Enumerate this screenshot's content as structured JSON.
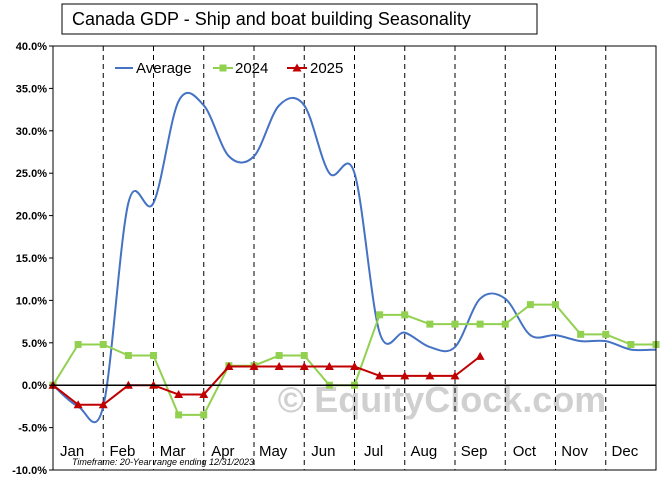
{
  "chart_data": {
    "type": "line",
    "title": "Canada  GDP - Ship and boat building Seasonality",
    "footnote": "Timeframe: 20-Year range ending 12/31/2023",
    "watermark": "© EquityClock.com",
    "x_tick_labels": [
      "Jan",
      "Feb",
      "Mar",
      "Apr",
      "May",
      "Jun",
      "Jul",
      "Aug",
      "Sep",
      "Oct",
      "Nov",
      "Dec"
    ],
    "y_tick_labels": [
      "40.0%",
      "35.0%",
      "30.0%",
      "25.0%",
      "20.0%",
      "15.0%",
      "10.0%",
      "5.0%",
      "0.0%",
      "-5.0%",
      "-10.0%"
    ],
    "ylim": [
      -10,
      40
    ],
    "xlim": [
      0,
      12
    ],
    "legend": [
      "Average",
      "2024",
      "2025"
    ],
    "series": [
      {
        "name": "Average",
        "color": "#4472C4",
        "marker": "none",
        "smooth": true,
        "x": [
          0,
          0.5,
          1.0,
          1.5,
          2.0,
          2.5,
          3.0,
          3.5,
          4.0,
          4.5,
          5.0,
          5.5,
          6.0,
          6.5,
          7.0,
          7.5,
          8.0,
          8.5,
          9.0,
          9.5,
          10.0,
          10.5,
          11.0,
          11.5,
          12.0
        ],
        "values": [
          0,
          -2.5,
          -2.5,
          21.5,
          21.5,
          33.5,
          33.0,
          27.0,
          27.0,
          33.0,
          33.0,
          25.0,
          25.0,
          6.2,
          6.2,
          4.5,
          4.5,
          10.2,
          10.2,
          5.9,
          5.9,
          5.2,
          5.2,
          4.2,
          4.2
        ]
      },
      {
        "name": "2024",
        "color": "#92D050",
        "marker": "square",
        "smooth": false,
        "x": [
          0,
          0.5,
          1.0,
          1.5,
          2.0,
          2.5,
          3.0,
          3.5,
          4.0,
          4.5,
          5.0,
          5.5,
          6.0,
          6.5,
          7.0,
          7.5,
          8.0,
          8.5,
          9.0,
          9.5,
          10.0,
          10.5,
          11.0,
          11.5,
          12.0
        ],
        "values": [
          0,
          4.8,
          4.8,
          3.5,
          3.5,
          -3.5,
          -3.5,
          2.3,
          2.3,
          3.5,
          3.5,
          0,
          0,
          8.3,
          8.3,
          7.2,
          7.2,
          7.2,
          7.2,
          9.5,
          9.5,
          6.0,
          6.0,
          4.8,
          4.8
        ]
      },
      {
        "name": "2025",
        "color": "#C00000",
        "marker": "triangle",
        "smooth": false,
        "x": [
          0,
          0.5,
          1.0,
          1.5,
          2.0,
          2.5,
          3.0,
          3.5,
          4.0,
          4.5,
          5.0,
          5.5,
          6.0,
          6.5,
          7.0,
          7.5,
          8.0,
          8.5
        ],
        "values": [
          0,
          -2.3,
          -2.3,
          0,
          0,
          -1.1,
          -1.1,
          2.2,
          2.2,
          2.2,
          2.2,
          2.2,
          2.2,
          1.1,
          1.1,
          1.1,
          1.1,
          3.4
        ]
      }
    ]
  }
}
